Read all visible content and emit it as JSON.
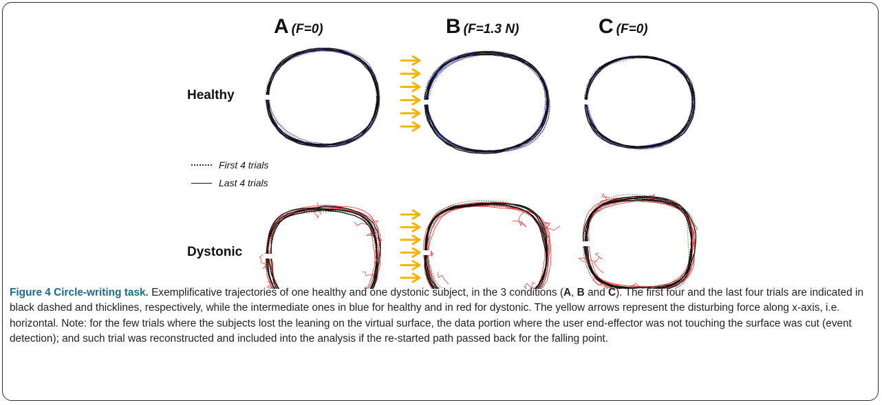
{
  "conditions": [
    {
      "letter": "A",
      "label": "(F=0)"
    },
    {
      "letter": "B",
      "label": "(F=1.3 N)"
    },
    {
      "letter": "C",
      "label": "(F=0)"
    }
  ],
  "rows": [
    {
      "label": "Healthy",
      "intermediate_color": "#5b5bd6"
    },
    {
      "label": "Dystonic",
      "intermediate_color": "#e8413c"
    }
  ],
  "legend": {
    "first": "First 4 trials",
    "last": "Last 4 trials"
  },
  "force_arrow_color": "#f5b400",
  "force_arrow_count": 6,
  "caption": {
    "title": "Figure 4 Circle-writing task.",
    "part1": " Exemplificative trajectories of one healthy and one dystonic subject, in the 3 conditions (",
    "a": "A",
    "sep1": ", ",
    "b": "B",
    "sep2": " and ",
    "c": "C",
    "part2": "). The first four and the last four trials are indicated in black dashed and thicklines, respectively, while the intermediate ones in blue for healthy and in red for dystonic. The yellow arrows represent the disturbing force along x-axis, i.e. horizontal. Note: for the few trials where the subjects lost the leaning on the virtual surface, the data portion where the user end-effector was not touching the surface was cut (event detection); and such trial was reconstructed and included into the analysis if the re-started path passed back for the falling point."
  }
}
